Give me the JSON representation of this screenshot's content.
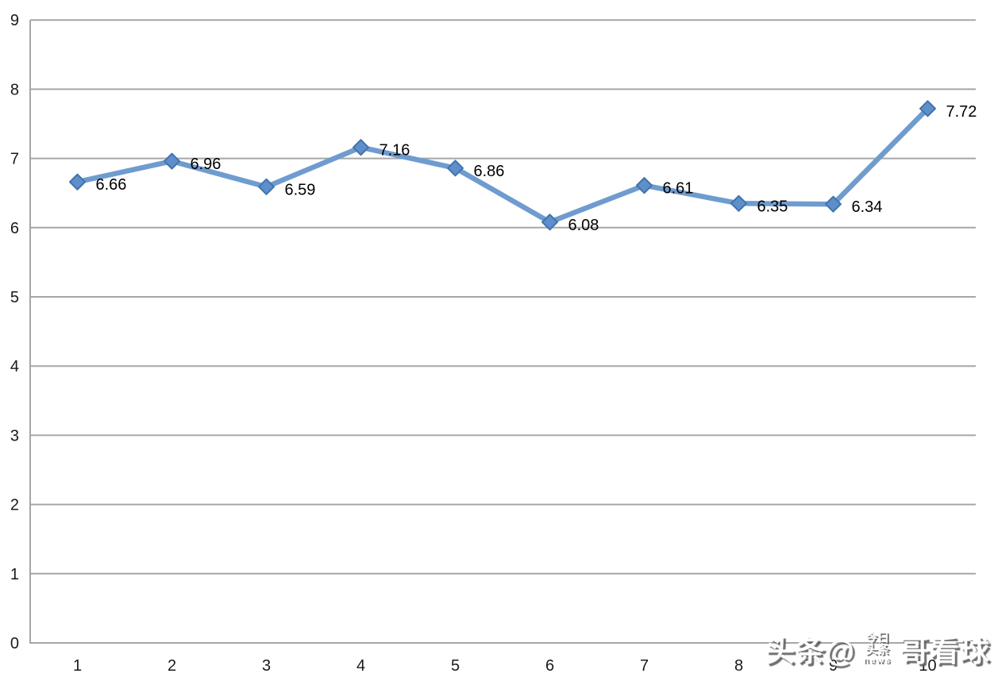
{
  "chart_data": {
    "type": "line",
    "title": "",
    "xlabel": "",
    "ylabel": "",
    "categories": [
      "1",
      "2",
      "3",
      "4",
      "5",
      "6",
      "7",
      "8",
      "9",
      "10"
    ],
    "series": [
      {
        "name": "",
        "values": [
          6.66,
          6.96,
          6.59,
          7.16,
          6.86,
          6.08,
          6.61,
          6.35,
          6.34,
          7.72
        ],
        "data_labels": [
          "6.66",
          "6.96",
          "6.59",
          "7.16",
          "6.86",
          "6.08",
          "6.61",
          "6.35",
          "6.34",
          "7.72"
        ]
      }
    ],
    "ylim": [
      0,
      9
    ],
    "yticks": [
      "0",
      "1",
      "2",
      "3",
      "4",
      "5",
      "6",
      "7",
      "8",
      "9"
    ],
    "grid": true,
    "legend": "none",
    "marker": "diamond",
    "colors": {
      "line": "#6f9ccf",
      "marker_fill": "#5e8fcb",
      "marker_stroke": "#4173ab",
      "gridline": "#a6a6a6",
      "axis": "#a6a6a6",
      "tick_label": "#1a1a1a",
      "data_label": "#000000"
    }
  },
  "watermark": {
    "prefix": "头条@",
    "suffix": "哥看球",
    "logo_lines": [
      "今日",
      "头条",
      "news"
    ]
  }
}
